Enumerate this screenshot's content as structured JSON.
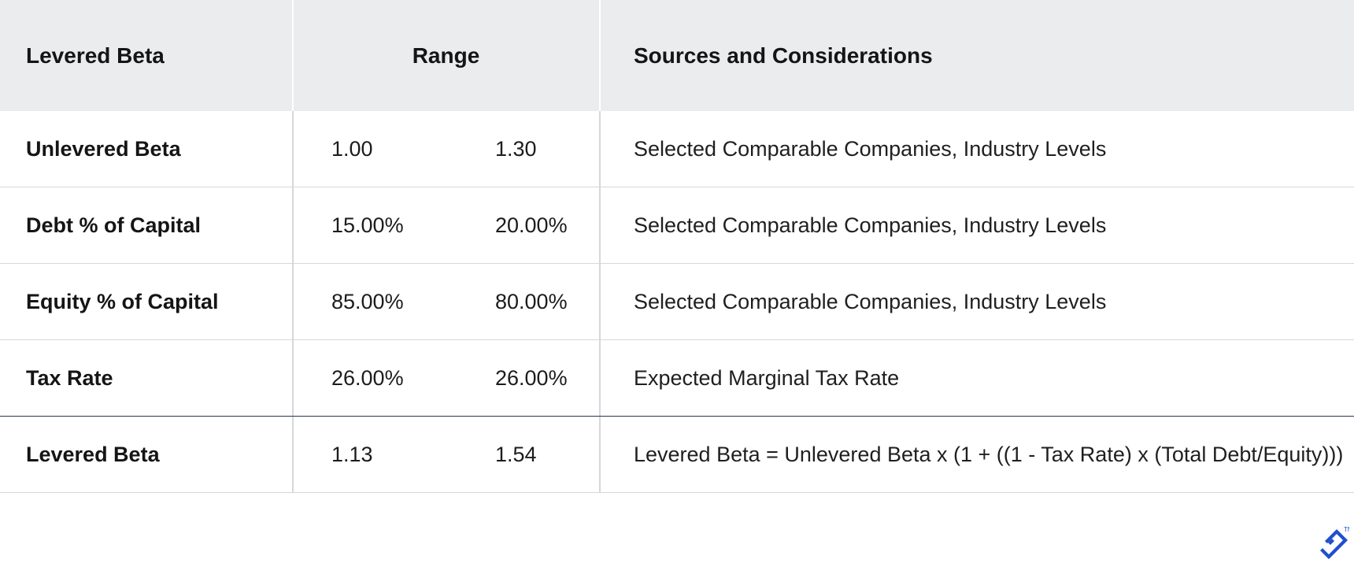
{
  "header": {
    "col1": "Levered Beta",
    "col2": "Range",
    "col3": "Sources and Considerations"
  },
  "rows": [
    {
      "label": "Unlevered Beta",
      "low": "1.00",
      "high": "1.30",
      "source": "Selected Comparable Companies, Industry Levels"
    },
    {
      "label": "Debt % of Capital",
      "low": "15.00%",
      "high": "20.00%",
      "source": "Selected Comparable Companies, Industry Levels"
    },
    {
      "label": "Equity % of Capital",
      "low": "85.00%",
      "high": "80.00%",
      "source": "Selected Comparable Companies, Industry Levels"
    },
    {
      "label": "Tax Rate",
      "low": "26.00%",
      "high": "26.00%",
      "source": "Expected Marginal Tax Rate"
    },
    {
      "label": "Levered Beta",
      "low": "1.13",
      "high": "1.54",
      "source": "Levered Beta = Unlevered Beta x (1 + ((1 - Tax Rate) x (Total Debt/Equity)))"
    }
  ],
  "logo": {
    "icon": "brand-logo-icon",
    "trademark": "TM",
    "color": "#204ecf"
  },
  "colors": {
    "header_bg": "#ebecee",
    "divider": "#d6d7da",
    "total_divider": "#283550"
  }
}
